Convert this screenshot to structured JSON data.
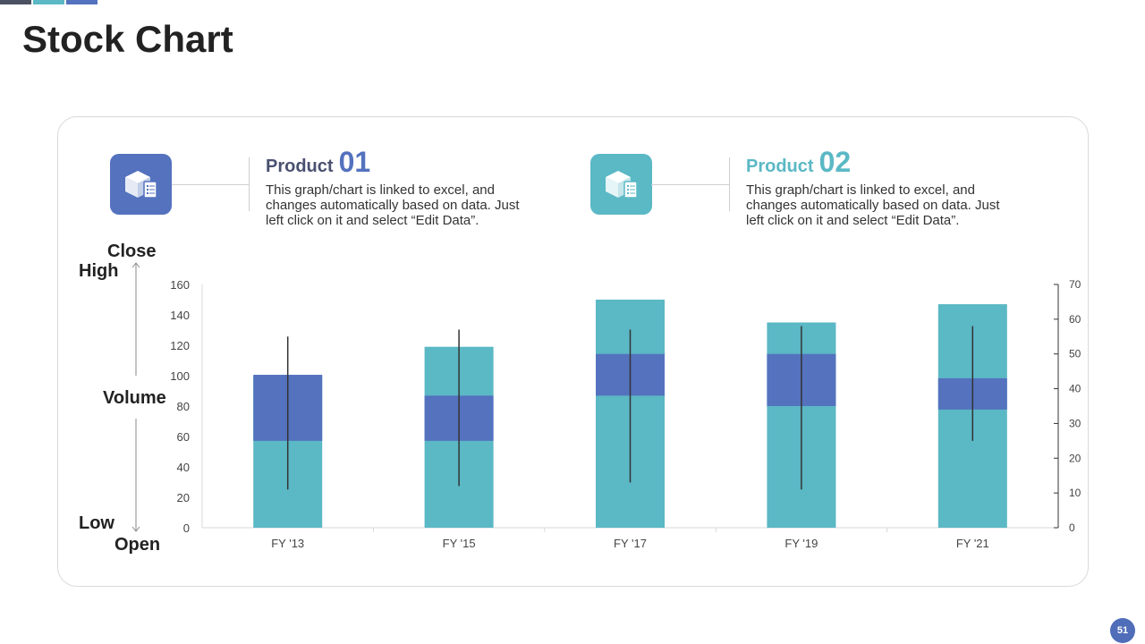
{
  "slide": {
    "title": "Stock Chart",
    "page_number": "51"
  },
  "colors": {
    "dark": "#4a5160",
    "teal": "#5bb8c5",
    "blue": "#5472be",
    "product1_text": "#4a5170",
    "product2_text": "#5bb8c5"
  },
  "products": [
    {
      "label": "Product",
      "number": "01",
      "description": "This graph/chart is linked to excel, and changes automatically based on data. Just left click on it and select “Edit Data”.",
      "icon": "package-checklist-icon"
    },
    {
      "label": "Product",
      "number": "02",
      "description": "This graph/chart is linked to excel, and changes automatically based on data. Just left click on it and select “Edit Data”.",
      "icon": "package-checklist-icon"
    }
  ],
  "legend": {
    "close": "Close",
    "high": "High",
    "volume": "Volume",
    "low": "Low",
    "open": "Open"
  },
  "chart_data": {
    "type": "bar",
    "subtype": "stock-volume-open-high-low-close",
    "categories": [
      "FY '13",
      "FY '15",
      "FY '17",
      "FY '19",
      "FY '21"
    ],
    "series": [
      {
        "name": "Volume",
        "axis": "left",
        "values": [
          100,
          119,
          150,
          135,
          147
        ]
      },
      {
        "name": "Open",
        "axis": "right",
        "values": [
          25,
          25,
          38,
          35,
          34
        ]
      },
      {
        "name": "High",
        "axis": "right",
        "values": [
          55,
          57,
          57,
          58,
          58
        ]
      },
      {
        "name": "Low",
        "axis": "right",
        "values": [
          11,
          12,
          13,
          11,
          25
        ]
      },
      {
        "name": "Close",
        "axis": "right",
        "values": [
          44,
          38,
          50,
          50,
          43
        ]
      }
    ],
    "y_left": {
      "range": [
        0,
        160
      ],
      "ticks": [
        0,
        20,
        40,
        60,
        80,
        100,
        120,
        140,
        160
      ]
    },
    "y_right": {
      "range": [
        0,
        70
      ],
      "ticks": [
        0,
        10,
        20,
        30,
        40,
        50,
        60,
        70
      ]
    },
    "title": "",
    "xlabel": "",
    "ylabel": "",
    "grid": false,
    "legend": "left"
  }
}
